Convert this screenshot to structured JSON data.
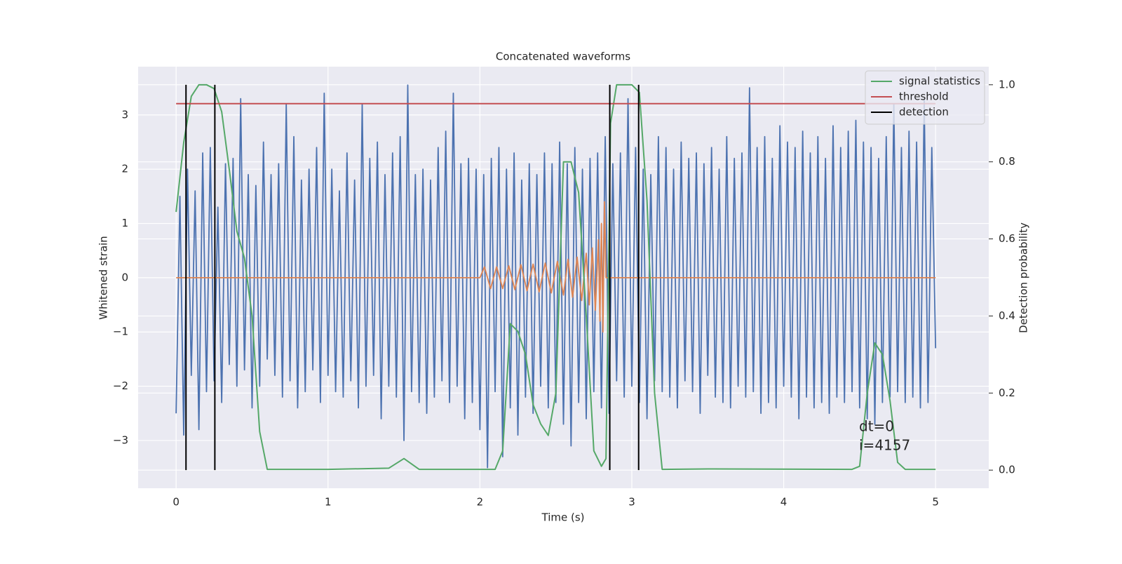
{
  "chart_data": {
    "type": "line",
    "title": "Concatenated waveforms",
    "xlabel": "Time (s)",
    "ylabel": "Whitened strain",
    "y2label": "Detection probability",
    "xlim": [
      -0.25,
      5.35
    ],
    "ylim": [
      -3.88,
      3.89
    ],
    "y2lim": [
      -0.047,
      1.047
    ],
    "xticks": [
      0,
      1,
      2,
      3,
      4,
      5
    ],
    "yticks": [
      {
        "value": -3,
        "label": "−3"
      },
      {
        "value": -2,
        "label": "−2"
      },
      {
        "value": -1,
        "label": "−1"
      },
      0,
      1,
      2,
      3
    ],
    "y2ticks": [
      {
        "value": 0,
        "label": "0.0"
      },
      {
        "value": 0.2,
        "label": "0.2"
      },
      {
        "value": 0.4,
        "label": "0.4"
      },
      {
        "value": 0.6,
        "label": "0.6"
      },
      {
        "value": 0.8,
        "label": "0.8"
      },
      {
        "value": 1,
        "label": "1.0"
      }
    ],
    "grid": true,
    "legend": "upper right",
    "annotations": [
      "dt=0",
      "i=4157"
    ],
    "series": [
      {
        "color": "#4c72b0",
        "step": true,
        "x": [
          0,
          0.025,
          0.05,
          0.075,
          0.1,
          0.125,
          0.15,
          0.175,
          0.2,
          0.225,
          0.25,
          0.275,
          0.3,
          0.325,
          0.35,
          0.375,
          0.4,
          0.425,
          0.45,
          0.475,
          0.5,
          0.525,
          0.55,
          0.575,
          0.6,
          0.625,
          0.65,
          0.675,
          0.7,
          0.725,
          0.75,
          0.775,
          0.8,
          0.825,
          0.85,
          0.875,
          0.9,
          0.925,
          0.95,
          0.975,
          1,
          1.025,
          1.05,
          1.075,
          1.1,
          1.125,
          1.15,
          1.175,
          1.2,
          1.225,
          1.25,
          1.275,
          1.3,
          1.325,
          1.35,
          1.375,
          1.4,
          1.425,
          1.45,
          1.475,
          1.5,
          1.525,
          1.55,
          1.575,
          1.6,
          1.625,
          1.65,
          1.675,
          1.7,
          1.725,
          1.75,
          1.775,
          1.8,
          1.825,
          1.85,
          1.875,
          1.9,
          1.925,
          1.95,
          1.975,
          2,
          2.025,
          2.05,
          2.075,
          2.1,
          2.125,
          2.15,
          2.175,
          2.2,
          2.225,
          2.25,
          2.275,
          2.3,
          2.325,
          2.35,
          2.375,
          2.4,
          2.425,
          2.45,
          2.475,
          2.5,
          2.525,
          2.55,
          2.575,
          2.6,
          2.625,
          2.65,
          2.675,
          2.7,
          2.725,
          2.75,
          2.775,
          2.8,
          2.825,
          2.85,
          2.875,
          2.9,
          2.925,
          2.95,
          2.975,
          3,
          3.025,
          3.05,
          3.075,
          3.1,
          3.125,
          3.15,
          3.175,
          3.2,
          3.225,
          3.25,
          3.275,
          3.3,
          3.325,
          3.35,
          3.375,
          3.4,
          3.425,
          3.45,
          3.475,
          3.5,
          3.525,
          3.55,
          3.575,
          3.6,
          3.625,
          3.65,
          3.675,
          3.7,
          3.725,
          3.75,
          3.775,
          3.8,
          3.825,
          3.85,
          3.875,
          3.9,
          3.925,
          3.95,
          3.975,
          4,
          4.025,
          4.05,
          4.075,
          4.1,
          4.125,
          4.15,
          4.175,
          4.2,
          4.225,
          4.25,
          4.275,
          4.3,
          4.325,
          4.35,
          4.375,
          4.4,
          4.425,
          4.45,
          4.475,
          4.5,
          4.525,
          4.55,
          4.575,
          4.6,
          4.625,
          4.65,
          4.675,
          4.7,
          4.725,
          4.75,
          4.775,
          4.8,
          4.825,
          4.85,
          4.875,
          4.9,
          4.925,
          4.95,
          4.975,
          5
        ],
        "values": [
          -2.5,
          1.5,
          -2.9,
          2.0,
          -1.8,
          1.6,
          -2.8,
          2.3,
          -2.1,
          2.4,
          -1.9,
          1.3,
          -2.3,
          2.1,
          -1.6,
          2.2,
          -2.0,
          3.3,
          -1.7,
          1.9,
          -2.4,
          1.7,
          -2.0,
          2.5,
          -1.5,
          1.9,
          -1.8,
          2.1,
          -2.2,
          3.2,
          -1.9,
          2.6,
          -2.4,
          1.8,
          -2.1,
          2.0,
          -1.7,
          2.4,
          -2.3,
          3.4,
          -1.8,
          2.0,
          -2.1,
          1.6,
          -2.2,
          2.3,
          -1.9,
          1.8,
          -2.4,
          3.2,
          -2.0,
          2.2,
          -1.8,
          2.5,
          -2.6,
          1.9,
          -2.0,
          2.3,
          -2.2,
          2.6,
          -3.0,
          3.55,
          -2.1,
          1.9,
          -2.3,
          2.0,
          -2.5,
          1.8,
          -2.2,
          2.4,
          -1.9,
          2.7,
          -2.3,
          3.4,
          -2.0,
          2.1,
          -2.6,
          2.2,
          -2.3,
          2.0,
          -2.8,
          1.9,
          -3.5,
          2.2,
          -2.1,
          2.4,
          -3.3,
          2.0,
          -2.4,
          2.3,
          -2.9,
          1.8,
          -2.2,
          2.1,
          -2.5,
          1.9,
          -2.0,
          2.3,
          -2.4,
          2.1,
          -2.3,
          2.5,
          -2.7,
          2.1,
          -3.1,
          2.4,
          -2.3,
          2.0,
          -2.6,
          2.2,
          -2.1,
          2.3,
          -2.4,
          2.6,
          -2.5,
          2.1,
          -1.9,
          2.3,
          -2.2,
          3.3,
          -2.0,
          2.4,
          -2.3,
          2.0,
          -2.6,
          1.9,
          -1.9,
          2.6,
          -2.1,
          2.4,
          -2.2,
          2.0,
          -2.4,
          2.5,
          -1.9,
          2.2,
          -2.1,
          2.3,
          -2.5,
          2.1,
          -1.8,
          2.4,
          -2.2,
          2.0,
          -2.3,
          2.6,
          -2.4,
          2.2,
          -2.0,
          2.3,
          -2.2,
          3.5,
          -2.1,
          2.4,
          -2.5,
          2.6,
          -2.3,
          2.2,
          -2.4,
          2.8,
          -2.0,
          2.5,
          -2.2,
          2.4,
          -2.6,
          2.7,
          -2.2,
          2.3,
          -2.4,
          2.6,
          -2.3,
          2.2,
          -2.5,
          2.8,
          -2.2,
          2.4,
          -2.3,
          2.7,
          -2.1,
          2.9,
          -2.4,
          2.5,
          -2.6,
          2.4,
          -2.7,
          2.2,
          -2.3,
          2.6,
          -2.2,
          3.2,
          -2.1,
          2.4,
          -2.3,
          2.7,
          -2.2,
          2.5,
          -2.4,
          3.3,
          -2.3,
          2.4,
          -1.3
        ]
      },
      {
        "color": "#dd8452",
        "x": [
          0,
          2.0,
          2.03,
          2.07,
          2.11,
          2.15,
          2.19,
          2.23,
          2.27,
          2.31,
          2.35,
          2.39,
          2.43,
          2.47,
          2.51,
          2.55,
          2.58,
          2.61,
          2.64,
          2.67,
          2.7,
          2.72,
          2.74,
          2.76,
          2.78,
          2.79,
          2.8,
          2.81,
          2.82,
          2.83,
          5.0
        ],
        "values": [
          0,
          0,
          0.2,
          -0.2,
          0.2,
          -0.2,
          0.22,
          -0.22,
          0.24,
          -0.24,
          0.25,
          -0.26,
          0.27,
          -0.28,
          0.3,
          -0.32,
          0.34,
          -0.36,
          0.38,
          -0.42,
          0.45,
          -0.5,
          0.55,
          -0.6,
          0.7,
          -0.8,
          1.0,
          -1.0,
          1.4,
          0,
          0
        ]
      },
      {
        "name": "signal statistics",
        "color": "#55a868",
        "axis": "y2",
        "x": [
          0,
          0.05,
          0.1,
          0.15,
          0.2,
          0.25,
          0.3,
          0.35,
          0.4,
          0.45,
          0.5,
          0.55,
          0.6,
          1.0,
          1.4,
          1.5,
          1.6,
          2.1,
          2.15,
          2.2,
          2.25,
          2.3,
          2.35,
          2.4,
          2.45,
          2.5,
          2.55,
          2.6,
          2.65,
          2.7,
          2.75,
          2.8,
          2.83,
          2.86,
          2.9,
          3.0,
          3.05,
          3.1,
          3.15,
          3.2,
          3.5,
          4.45,
          4.5,
          4.55,
          4.6,
          4.65,
          4.7,
          4.75,
          4.8,
          5.0
        ],
        "values": [
          0.67,
          0.85,
          0.97,
          1.0,
          1.0,
          0.99,
          0.93,
          0.78,
          0.62,
          0.55,
          0.4,
          0.1,
          0.002,
          0.002,
          0.005,
          0.03,
          0.002,
          0.002,
          0.05,
          0.38,
          0.36,
          0.3,
          0.17,
          0.12,
          0.09,
          0.2,
          0.8,
          0.8,
          0.72,
          0.4,
          0.05,
          0.01,
          0.03,
          0.9,
          1.0,
          1.0,
          0.98,
          0.7,
          0.2,
          0.002,
          0.003,
          0.002,
          0.01,
          0.2,
          0.33,
          0.3,
          0.18,
          0.02,
          0.002,
          0.002
        ]
      },
      {
        "name": "threshold",
        "color": "#c44e52",
        "axis": "y2",
        "x": [
          0,
          5
        ],
        "values": [
          0.951,
          0.951
        ]
      },
      {
        "name": "detection",
        "color": "#000000",
        "axis": "y2",
        "vlines": true,
        "x": [
          0.065,
          0.255,
          2.855,
          3.045
        ],
        "ymin": 0,
        "ymax": 1
      }
    ]
  }
}
